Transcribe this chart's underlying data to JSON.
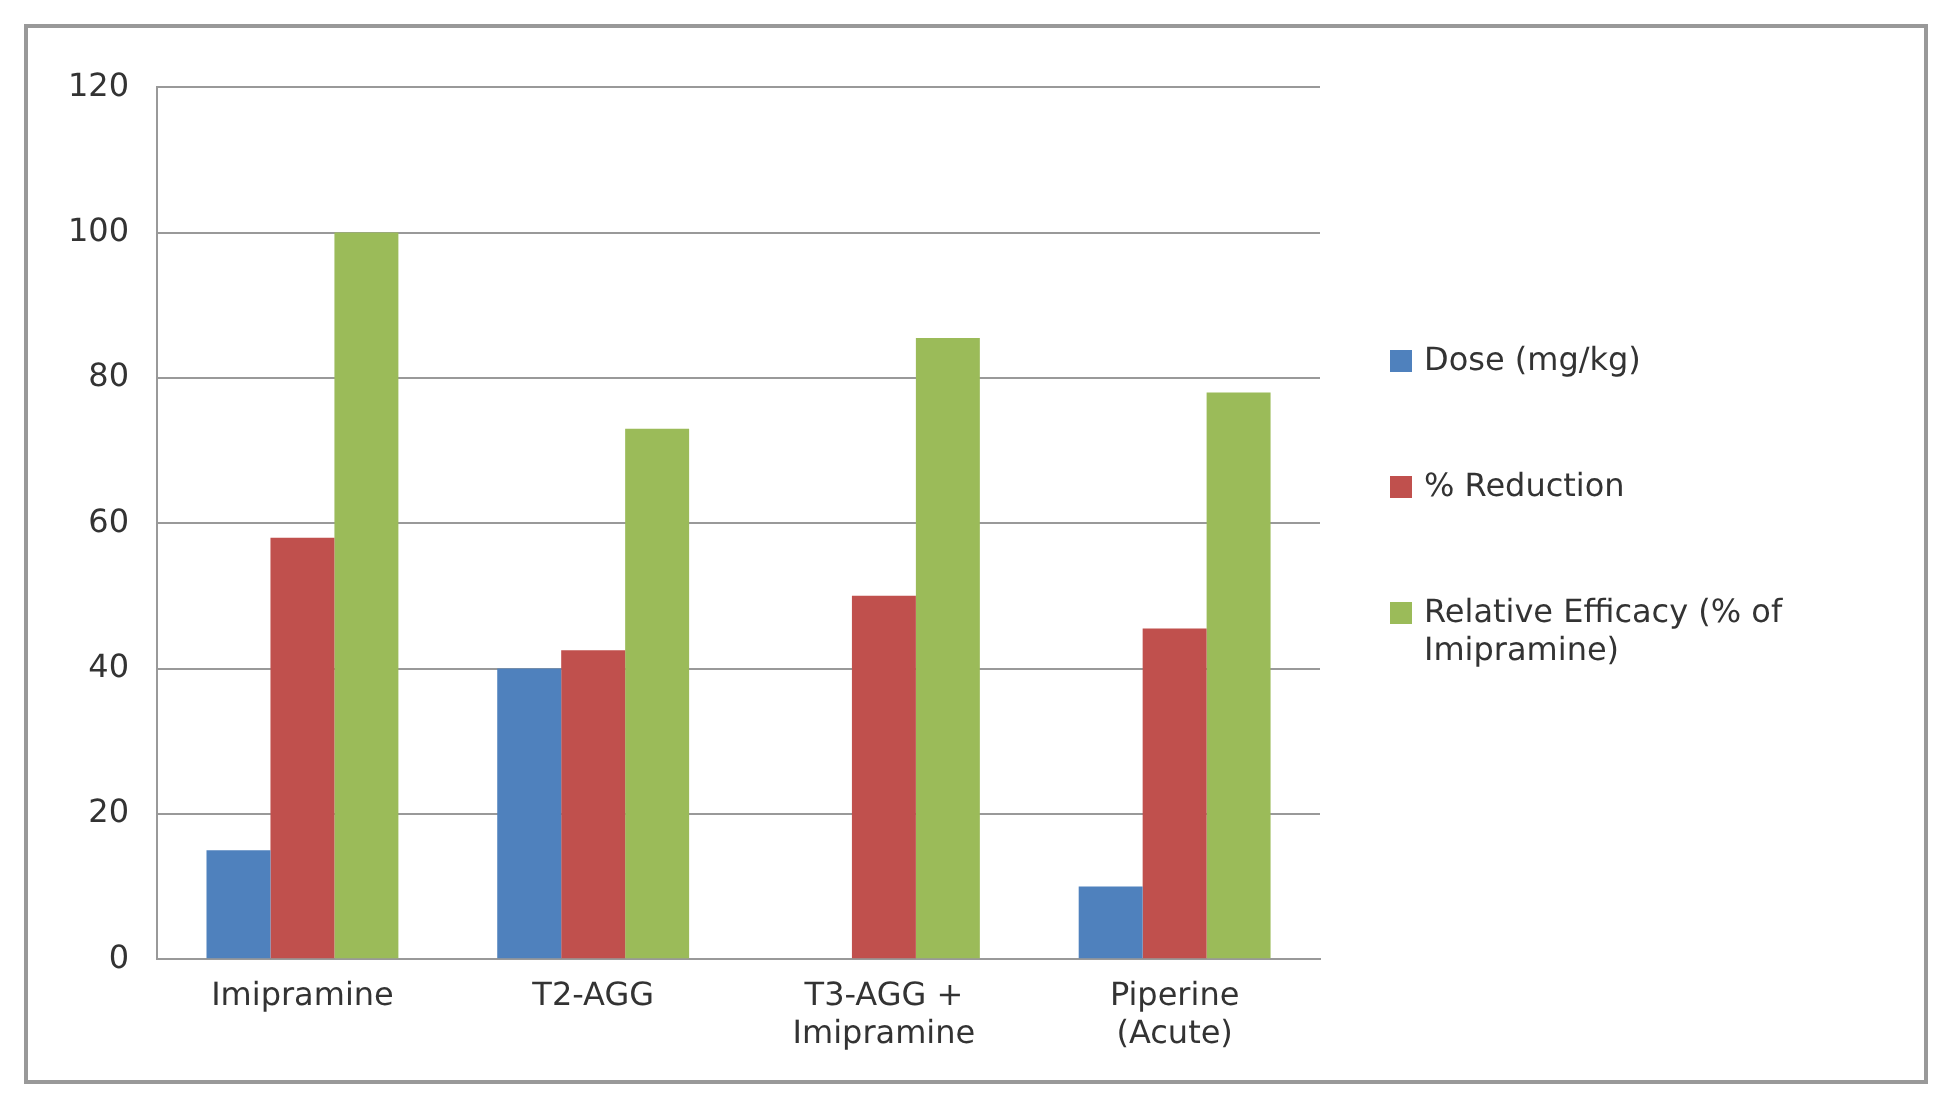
{
  "chart_data": {
    "type": "bar",
    "categories": [
      "Imipramine",
      "T2-AGG",
      "T3-AGG + Imipramine",
      "Piperine (Acute)"
    ],
    "series": [
      {
        "name": "Dose (mg/kg)",
        "color": "#4f81bd",
        "values": [
          15,
          40,
          null,
          10
        ]
      },
      {
        "name": "% Reduction",
        "color": "#c0504d",
        "values": [
          58,
          42.5,
          50,
          45.5
        ]
      },
      {
        "name": "Relative Efficacy (% of Imipramine)",
        "color": "#9bbb59",
        "values": [
          100,
          73,
          85.5,
          78
        ]
      }
    ],
    "ylim": [
      0,
      120
    ],
    "yticks": [
      0,
      20,
      40,
      60,
      80,
      100,
      120
    ],
    "grid": "y",
    "legend": "right"
  }
}
